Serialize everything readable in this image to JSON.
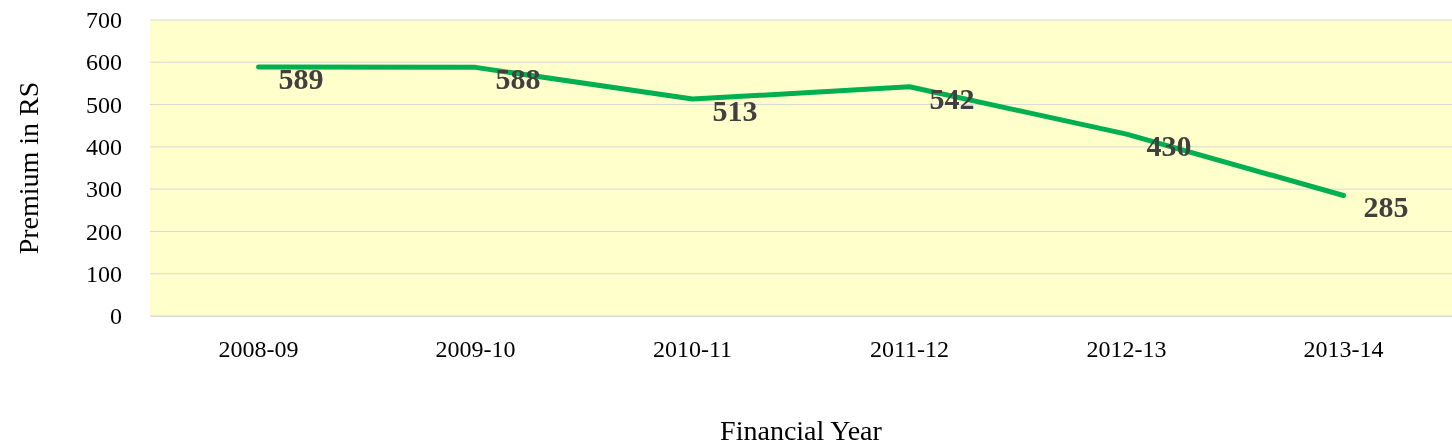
{
  "chart_data": {
    "type": "line",
    "xlabel": "Financial Year",
    "ylabel": "Premium in RS",
    "categories": [
      "2008-09",
      "2009-10",
      "2010-11",
      "2011-12",
      "2012-13",
      "2013-14"
    ],
    "series": [
      {
        "color": "#00b050",
        "values": [
          589,
          588,
          513,
          542,
          430,
          285
        ]
      }
    ],
    "ylim": [
      0,
      700
    ],
    "yticks": [
      0,
      100,
      200,
      300,
      400,
      500,
      600,
      700
    ],
    "grid": "y",
    "data_labels": true,
    "marker": "none",
    "line_style": "solid"
  }
}
